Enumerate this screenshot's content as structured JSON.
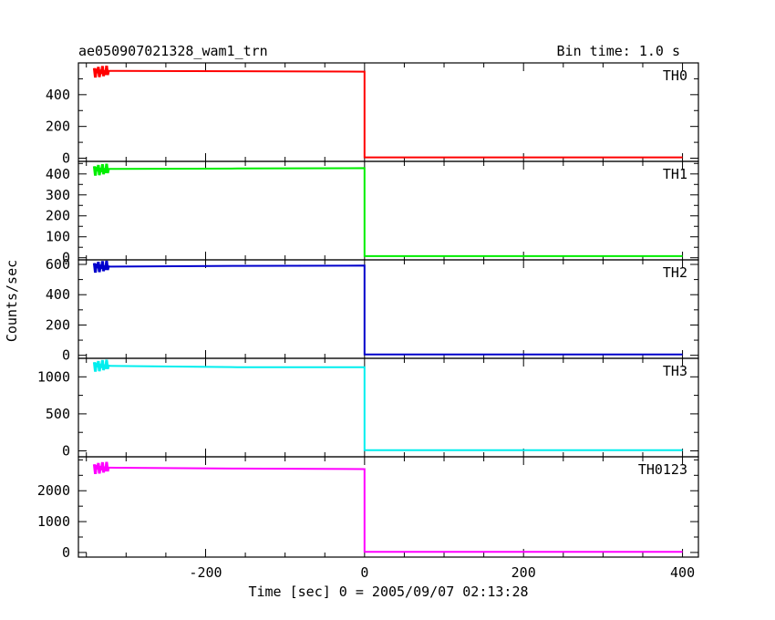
{
  "header": {
    "title": "ae050907021328_wam1_trn",
    "bin_time": "Bin time: 1.0 s"
  },
  "axes": {
    "ylabel": "Counts/sec",
    "xlabel": "Time [sec] 0 = 2005/09/07 02:13:28"
  },
  "chart_data": {
    "type": "line",
    "x_range": [
      -360,
      420
    ],
    "x_ticks": [
      -200,
      0,
      200,
      400
    ],
    "panels": [
      {
        "name": "TH0",
        "color": "#ff0000",
        "ylim": [
          -20,
          600
        ],
        "yticks": [
          0,
          200,
          400
        ],
        "burst_level": 545,
        "segments": [
          [
            -340,
            550
          ],
          [
            -160,
            548
          ],
          [
            0,
            545
          ],
          [
            0,
            5
          ],
          [
            400,
            5
          ]
        ]
      },
      {
        "name": "TH1",
        "color": "#00ee00",
        "ylim": [
          -10,
          460
        ],
        "yticks": [
          0,
          100,
          200,
          300,
          400
        ],
        "burst_level": 420,
        "segments": [
          [
            -340,
            424
          ],
          [
            -160,
            426
          ],
          [
            0,
            428
          ],
          [
            0,
            8
          ],
          [
            400,
            8
          ]
        ]
      },
      {
        "name": "TH2",
        "color": "#0000cc",
        "ylim": [
          -20,
          630
        ],
        "yticks": [
          0,
          200,
          400,
          600
        ],
        "burst_level": 585,
        "segments": [
          [
            -340,
            585
          ],
          [
            -160,
            590
          ],
          [
            0,
            592
          ],
          [
            0,
            5
          ],
          [
            400,
            5
          ]
        ]
      },
      {
        "name": "TH3",
        "color": "#00eeee",
        "ylim": [
          -80,
          1250
        ],
        "yticks": [
          0,
          500,
          1000
        ],
        "burst_level": 1150,
        "segments": [
          [
            -340,
            1150
          ],
          [
            -160,
            1130
          ],
          [
            0,
            1130
          ],
          [
            0,
            10
          ],
          [
            400,
            10
          ]
        ]
      },
      {
        "name": "TH0123",
        "color": "#ff00ff",
        "ylim": [
          -150,
          3100
        ],
        "yticks": [
          0,
          1000,
          2000
        ],
        "burst_level": 2740,
        "segments": [
          [
            -340,
            2750
          ],
          [
            -160,
            2720
          ],
          [
            0,
            2700
          ],
          [
            0,
            20
          ],
          [
            400,
            20
          ]
        ]
      }
    ]
  }
}
